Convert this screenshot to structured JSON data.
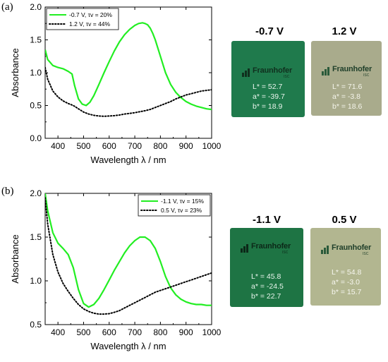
{
  "panels": [
    {
      "label": "(a)",
      "chart_data": {
        "type": "line",
        "xlabel": "Wavelength λ / nm",
        "ylabel": "Absorbance",
        "xlim": [
          350,
          1000
        ],
        "ylim": [
          0.0,
          2.0
        ],
        "xticks": [
          "400",
          "500",
          "600",
          "700",
          "800",
          "900",
          "1000"
        ],
        "yticks": [
          "0.0",
          "0.5",
          "1.0",
          "1.5",
          "2.0"
        ],
        "legend_position": "top-left",
        "series": [
          {
            "name": "-0.7 V, τv = 20%",
            "color": "#22ee22",
            "style": "solid",
            "x": [
              350,
              360,
              380,
              400,
              420,
              440,
              455,
              465,
              480,
              495,
              510,
              525,
              540,
              560,
              580,
              600,
              620,
              640,
              660,
              680,
              700,
              715,
              730,
              740,
              750,
              760,
              770,
              780,
              800,
              820,
              840,
              860,
              880,
              900,
              920,
              940,
              960,
              980,
              1000
            ],
            "y": [
              1.35,
              1.2,
              1.11,
              1.08,
              1.06,
              1.02,
              0.98,
              0.8,
              0.6,
              0.52,
              0.5,
              0.55,
              0.65,
              0.82,
              1.0,
              1.17,
              1.33,
              1.47,
              1.58,
              1.66,
              1.72,
              1.75,
              1.76,
              1.75,
              1.73,
              1.68,
              1.6,
              1.5,
              1.25,
              1.0,
              0.82,
              0.7,
              0.62,
              0.56,
              0.52,
              0.49,
              0.47,
              0.45,
              0.44
            ]
          },
          {
            "name": "1.2 V, τv = 44%",
            "color": "#000000",
            "style": "dotted",
            "x": [
              350,
              360,
              380,
              400,
              420,
              440,
              460,
              480,
              500,
              520,
              540,
              560,
              580,
              600,
              620,
              640,
              660,
              680,
              700,
              720,
              740,
              760,
              780,
              800,
              820,
              840,
              860,
              880,
              900,
              920,
              940,
              960,
              980,
              1000
            ],
            "y": [
              1.08,
              0.9,
              0.72,
              0.63,
              0.57,
              0.53,
              0.5,
              0.45,
              0.4,
              0.37,
              0.35,
              0.34,
              0.335,
              0.34,
              0.345,
              0.355,
              0.37,
              0.38,
              0.39,
              0.405,
              0.42,
              0.44,
              0.47,
              0.5,
              0.53,
              0.56,
              0.6,
              0.63,
              0.66,
              0.68,
              0.7,
              0.72,
              0.73,
              0.74
            ]
          }
        ]
      },
      "samples": [
        {
          "title": "-0.7 V",
          "color": "#1f7a4c",
          "logo_text": "Fraunhofer",
          "logo_sub": "ISC",
          "L": "L* = 52.7",
          "a": "a* = -39.7",
          "b": "b* = 18.9"
        },
        {
          "title": "1.2 V",
          "color": "#a9ab8c",
          "logo_text": "Fraunhofer",
          "logo_sub": "ISC",
          "L": "L* = 71.6",
          "a": "a* = -3.8",
          "b": "b* = 18.6"
        }
      ]
    },
    {
      "label": "(b)",
      "chart_data": {
        "type": "line",
        "xlabel": "Wavelength λ / nm",
        "ylabel": "Absorbance",
        "xlim": [
          350,
          1000
        ],
        "ylim": [
          0.5,
          2.0
        ],
        "xticks": [
          "400",
          "500",
          "600",
          "700",
          "800",
          "900",
          "1000"
        ],
        "yticks": [
          "0.5",
          "1.0",
          "1.5",
          "2.0"
        ],
        "legend_position": "top-right",
        "series": [
          {
            "name": "-1.1 V, τv = 15%",
            "color": "#22ee22",
            "style": "solid",
            "x": [
              350,
              360,
              380,
              400,
              420,
              440,
              460,
              480,
              500,
              520,
              540,
              560,
              580,
              600,
              620,
              640,
              660,
              680,
              700,
              720,
              740,
              760,
              780,
              800,
              820,
              840,
              860,
              880,
              900,
              920,
              940,
              960,
              980,
              1000
            ],
            "y": [
              2.0,
              1.8,
              1.55,
              1.43,
              1.37,
              1.3,
              1.15,
              0.9,
              0.74,
              0.7,
              0.73,
              0.8,
              0.9,
              1.01,
              1.12,
              1.22,
              1.32,
              1.4,
              1.46,
              1.5,
              1.5,
              1.46,
              1.37,
              1.22,
              1.05,
              0.92,
              0.84,
              0.79,
              0.76,
              0.74,
              0.73,
              0.73,
              0.72,
              0.72
            ]
          },
          {
            "name": "0.5 V, τv = 23%",
            "color": "#000000",
            "style": "dotted",
            "x": [
              350,
              360,
              380,
              400,
              420,
              440,
              460,
              480,
              500,
              520,
              540,
              560,
              580,
              600,
              620,
              640,
              660,
              680,
              700,
              720,
              740,
              760,
              780,
              800,
              820,
              840,
              860,
              880,
              900,
              920,
              940,
              960,
              980,
              1000
            ],
            "y": [
              1.95,
              1.65,
              1.3,
              1.1,
              0.97,
              0.88,
              0.8,
              0.73,
              0.68,
              0.65,
              0.63,
              0.62,
              0.62,
              0.625,
              0.64,
              0.66,
              0.69,
              0.72,
              0.75,
              0.78,
              0.81,
              0.84,
              0.87,
              0.89,
              0.91,
              0.93,
              0.95,
              0.97,
              0.99,
              1.01,
              1.03,
              1.05,
              1.07,
              1.09
            ]
          }
        ]
      },
      "samples": [
        {
          "title": "-1.1 V",
          "color": "#1e7444",
          "logo_text": "Fraunhofer",
          "logo_sub": "ISC",
          "L": "L* = 45.8",
          "a": "a* = -24.5",
          "b": "b* = 22.7"
        },
        {
          "title": "0.5 V",
          "color": "#b2b690",
          "logo_text": "Fraunhofer",
          "logo_sub": "ISC",
          "L": "L* = 54.8",
          "a": "a* = -3.0",
          "b": "b* = 15.7"
        }
      ]
    }
  ]
}
